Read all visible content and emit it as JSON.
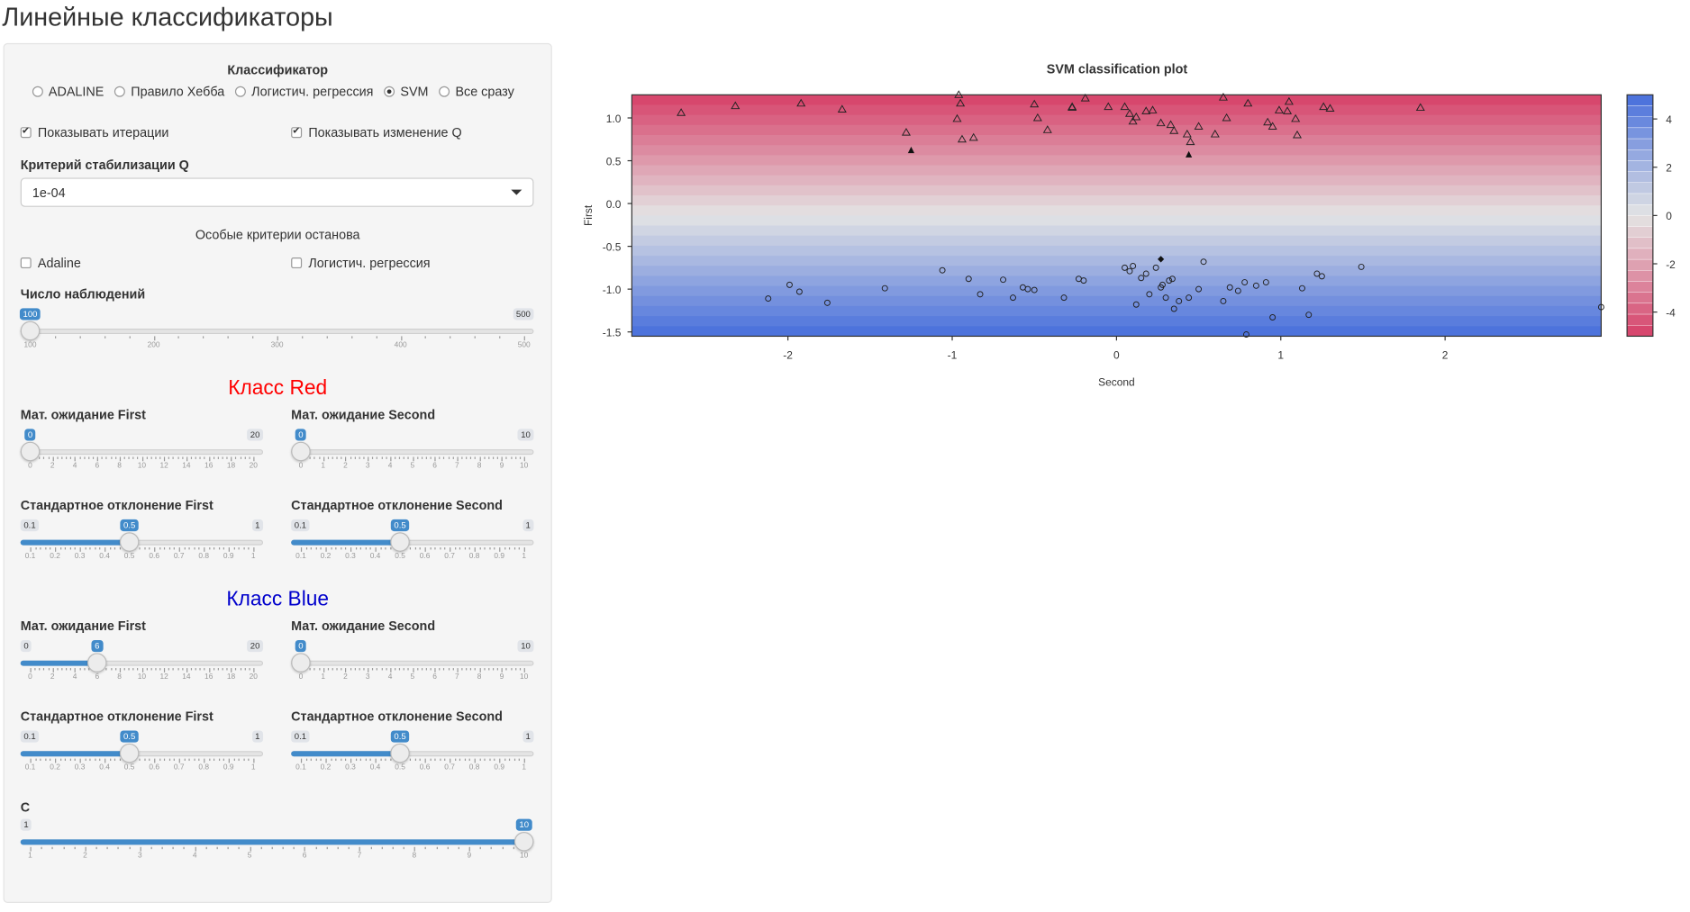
{
  "page": {
    "title": "Линейные классификаторы"
  },
  "sidebar": {
    "classifier_label": "Классификатор",
    "classifiers": [
      {
        "label": "ADALINE",
        "checked": false
      },
      {
        "label": "Правило Хебба",
        "checked": false
      },
      {
        "label": "Логистич. регрессия",
        "checked": false
      },
      {
        "label": "SVM",
        "checked": true
      },
      {
        "label": "Все сразу",
        "checked": false
      }
    ],
    "show_iterations": {
      "label": "Показывать итерации",
      "checked": true
    },
    "show_q_change": {
      "label": "Показывать изменение Q",
      "checked": true
    },
    "stab_label": "Критерий стабилизации Q",
    "stab_value": "1e-04",
    "special_stop_label": "Особые критерии останова",
    "adaline_stop": {
      "label": "Adaline",
      "checked": false
    },
    "logreg_stop": {
      "label": "Логистич. регрессия",
      "checked": false
    },
    "n_obs": {
      "label": "Число наблюдений",
      "min": 100,
      "max": 500,
      "value": 100,
      "ticks": [
        "100",
        "200",
        "300",
        "400",
        "500"
      ]
    },
    "red_title": "Класс Red",
    "red_mean_first": {
      "label": "Мат. ожидание First",
      "min": 0,
      "max": 20,
      "value": 0,
      "ticks": [
        "0",
        "2",
        "4",
        "6",
        "8",
        "10",
        "12",
        "14",
        "16",
        "18",
        "20"
      ]
    },
    "red_mean_second": {
      "label": "Мат. ожидание Second",
      "min": 0,
      "max": 10,
      "value": 0,
      "ticks": [
        "0",
        "1",
        "2",
        "3",
        "4",
        "5",
        "6",
        "7",
        "8",
        "9",
        "10"
      ]
    },
    "red_sd_first": {
      "label": "Стандартное отклонение First",
      "min": 0.1,
      "max": 1,
      "value": 0.5,
      "ticks": [
        "0.1",
        "0.2",
        "0.3",
        "0.4",
        "0.5",
        "0.6",
        "0.7",
        "0.8",
        "0.9",
        "1"
      ]
    },
    "red_sd_second": {
      "label": "Стандартное отклонение Second",
      "min": 0.1,
      "max": 1,
      "value": 0.5,
      "ticks": [
        "0.1",
        "0.2",
        "0.3",
        "0.4",
        "0.5",
        "0.6",
        "0.7",
        "0.8",
        "0.9",
        "1"
      ]
    },
    "blue_title": "Класс Blue",
    "blue_mean_first": {
      "label": "Мат. ожидание First",
      "min": 0,
      "max": 20,
      "value": 6,
      "ticks": [
        "0",
        "2",
        "4",
        "6",
        "8",
        "10",
        "12",
        "14",
        "16",
        "18",
        "20"
      ]
    },
    "blue_mean_second": {
      "label": "Мат. ожидание Second",
      "min": 0,
      "max": 10,
      "value": 0,
      "ticks": [
        "0",
        "1",
        "2",
        "3",
        "4",
        "5",
        "6",
        "7",
        "8",
        "9",
        "10"
      ]
    },
    "blue_sd_first": {
      "label": "Стандартное отклонение First",
      "min": 0.1,
      "max": 1,
      "value": 0.5,
      "ticks": [
        "0.1",
        "0.2",
        "0.3",
        "0.4",
        "0.5",
        "0.6",
        "0.7",
        "0.8",
        "0.9",
        "1"
      ]
    },
    "blue_sd_second": {
      "label": "Стандартное отклонение Second",
      "min": 0.1,
      "max": 1,
      "value": 0.5,
      "ticks": [
        "0.1",
        "0.2",
        "0.3",
        "0.4",
        "0.5",
        "0.6",
        "0.7",
        "0.8",
        "0.9",
        "1"
      ]
    },
    "c_param": {
      "label": "C",
      "min": 1,
      "max": 10,
      "value": 10,
      "ticks": [
        "1",
        "2",
        "3",
        "4",
        "5",
        "6",
        "7",
        "8",
        "9",
        "10"
      ]
    }
  },
  "colors": {
    "accent": "#428bca",
    "red_title": "#ff0000",
    "blue_title": "#0000cc"
  },
  "chart_data": {
    "type": "scatter",
    "title": "SVM classification plot",
    "xlabel": "Second",
    "ylabel": "First",
    "xlim": [
      -2.95,
      2.95
    ],
    "ylim": [
      -1.55,
      1.27
    ],
    "xticks": [
      "-2",
      "-1",
      "0",
      "1",
      "2"
    ],
    "yticks": [
      "1.0",
      "0.5",
      "0.0",
      "-0.5",
      "-1.0",
      "-1.5"
    ],
    "legend_ticks": [
      "4",
      "2",
      "0",
      "-2",
      "-4"
    ],
    "legend_placement": "right",
    "series": [
      {
        "marker": "triangle",
        "points": [
          [
            -2.65,
            1.06
          ],
          [
            -2.32,
            1.14
          ],
          [
            -1.92,
            1.17
          ],
          [
            -1.67,
            1.1
          ],
          [
            -1.28,
            0.83
          ],
          [
            -0.97,
            0.99
          ],
          [
            -0.95,
            1.17
          ],
          [
            -0.87,
            0.77
          ],
          [
            -0.94,
            0.75
          ],
          [
            -0.5,
            1.16
          ],
          [
            -0.48,
            1.0
          ],
          [
            -0.42,
            0.86
          ],
          [
            -0.27,
            1.12
          ],
          [
            -0.19,
            1.23
          ],
          [
            -0.05,
            1.13
          ],
          [
            0.05,
            1.13
          ],
          [
            0.08,
            1.05
          ],
          [
            0.12,
            1.01
          ],
          [
            0.18,
            1.08
          ],
          [
            0.22,
            1.09
          ],
          [
            0.27,
            0.94
          ],
          [
            0.35,
            0.85
          ],
          [
            0.43,
            0.81
          ],
          [
            0.5,
            0.9
          ],
          [
            0.6,
            0.81
          ],
          [
            0.67,
            1.0
          ],
          [
            0.8,
            1.17
          ],
          [
            0.92,
            0.95
          ],
          [
            0.99,
            1.09
          ],
          [
            1.05,
            1.19
          ],
          [
            1.09,
            0.99
          ],
          [
            1.1,
            0.8
          ],
          [
            1.26,
            1.13
          ],
          [
            1.3,
            1.11
          ],
          [
            1.85,
            1.12
          ],
          [
            0.65,
            1.24
          ],
          [
            -0.96,
            1.27
          ],
          [
            0.1,
            0.96
          ],
          [
            0.33,
            0.92
          ],
          [
            0.45,
            0.72
          ],
          [
            0.95,
            0.9
          ],
          [
            -0.27,
            1.13
          ],
          [
            1.04,
            1.08
          ]
        ]
      },
      {
        "marker": "circle",
        "points": [
          [
            -2.12,
            -1.11
          ],
          [
            -1.99,
            -0.95
          ],
          [
            -1.93,
            -1.03
          ],
          [
            -1.76,
            -1.16
          ],
          [
            -1.41,
            -0.99
          ],
          [
            -1.06,
            -0.78
          ],
          [
            -0.9,
            -0.88
          ],
          [
            -0.83,
            -1.06
          ],
          [
            -0.69,
            -0.89
          ],
          [
            -0.63,
            -1.1
          ],
          [
            -0.57,
            -0.98
          ],
          [
            -0.5,
            -1.01
          ],
          [
            -0.32,
            -1.1
          ],
          [
            -0.23,
            -0.88
          ],
          [
            -0.2,
            -0.9
          ],
          [
            0.05,
            -0.75
          ],
          [
            0.08,
            -0.79
          ],
          [
            0.12,
            -1.18
          ],
          [
            0.15,
            -0.87
          ],
          [
            0.18,
            -0.82
          ],
          [
            0.2,
            -1.06
          ],
          [
            0.24,
            -0.75
          ],
          [
            0.27,
            -0.98
          ],
          [
            0.3,
            -1.1
          ],
          [
            0.32,
            -0.9
          ],
          [
            0.35,
            -1.23
          ],
          [
            0.38,
            -1.14
          ],
          [
            0.44,
            -1.1
          ],
          [
            0.5,
            -1.0
          ],
          [
            0.53,
            -0.68
          ],
          [
            0.65,
            -1.14
          ],
          [
            0.69,
            -0.98
          ],
          [
            0.74,
            -1.02
          ],
          [
            0.78,
            -0.92
          ],
          [
            0.85,
            -0.96
          ],
          [
            0.91,
            -0.92
          ],
          [
            0.95,
            -1.33
          ],
          [
            1.13,
            -0.99
          ],
          [
            1.17,
            -1.3
          ],
          [
            1.22,
            -0.82
          ],
          [
            1.25,
            -0.85
          ],
          [
            1.49,
            -0.74
          ],
          [
            2.95,
            -1.21
          ],
          [
            0.28,
            -0.95
          ],
          [
            0.1,
            -0.73
          ],
          [
            0.34,
            -0.88
          ],
          [
            0.79,
            -1.53
          ],
          [
            -0.54,
            -1.0
          ]
        ]
      },
      {
        "marker": "filled-triangle",
        "points": [
          [
            -1.25,
            0.62
          ],
          [
            0.44,
            0.57
          ]
        ]
      },
      {
        "marker": "filled-diamond",
        "points": [
          [
            0.27,
            -0.65
          ]
        ]
      }
    ]
  }
}
